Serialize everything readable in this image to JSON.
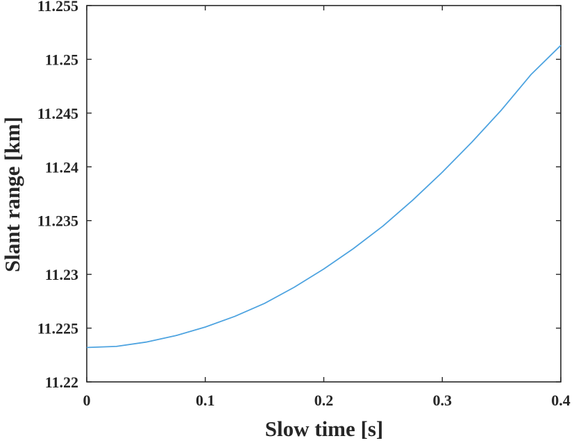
{
  "chart_data": {
    "type": "line",
    "title": "",
    "xlabel": "Slow time [s]",
    "ylabel": "Slant range [km]",
    "xlim": [
      0,
      0.4
    ],
    "ylim": [
      11.22,
      11.255
    ],
    "x_ticks": [
      "0",
      "0.1",
      "0.2",
      "0.3",
      "0.4"
    ],
    "y_ticks": [
      "11.22",
      "11.225",
      "11.23",
      "11.235",
      "11.24",
      "11.245",
      "11.25",
      "11.255"
    ],
    "grid": false,
    "legend": "none",
    "colors": {
      "line": "#4da3e0",
      "axes": "#262626"
    },
    "series": [
      {
        "x": [
          0,
          0.025,
          0.05,
          0.075,
          0.1,
          0.125,
          0.15,
          0.175,
          0.2,
          0.225,
          0.25,
          0.275,
          0.3,
          0.325,
          0.35,
          0.375,
          0.4
        ],
        "values": [
          11.2232,
          11.2233,
          11.2237,
          11.2243,
          11.2251,
          11.2261,
          11.2273,
          11.2288,
          11.2305,
          11.2324,
          11.2345,
          11.2369,
          11.2395,
          11.2423,
          11.2453,
          11.2486,
          11.2513
        ]
      }
    ]
  }
}
